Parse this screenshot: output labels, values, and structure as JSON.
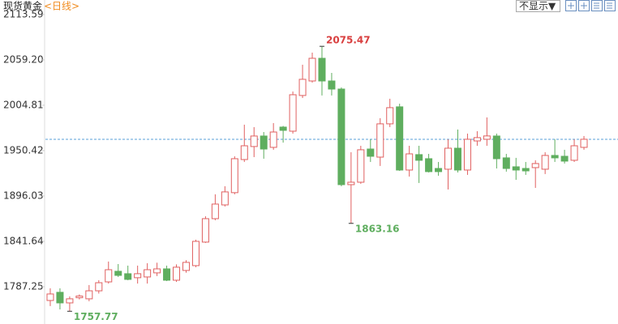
{
  "header": {
    "title": "现货黄金",
    "period": "<日线>",
    "toggle": "不显示▼"
  },
  "chart_data": {
    "type": "candlestick",
    "up_color": "#e06060",
    "down_color": "#5fae5f",
    "last_line_color": "#5aa0d8",
    "ylim": [
      1742.5,
      2131
    ],
    "yticks": [
      1787.25,
      1841.64,
      1896.03,
      1950.42,
      2004.81,
      {
        "value": 2059.2,
        "label": "2059.20"
      },
      2113.59
    ],
    "open": [
      1770.7,
      1780.5,
      1767.8,
      1774,
      1772.7,
      1782.3,
      1793,
      1805.7,
      1802.8,
      1798,
      1798.9,
      1803.8,
      1808.6,
      1795,
      1806.7,
      1812.5,
      1840.7,
      1868.8,
      1885.3,
      1900,
      1939.7,
      1955.3,
      1967.9,
      1954.3,
      1978.6,
      1973.7,
      2016.5,
      2033.9,
      2061.1,
      2033.9,
      2024.2,
      1909.6,
      1912.5,
      1952.3,
      1942.6,
      1982.5,
      2002.9,
      1927.1,
      1945.6,
      1940.7,
      1929,
      1928.1,
      1953.3,
      1927.1,
      1962,
      1964,
      1967.9,
      1941.7,
      1931,
      1929,
      1930,
      1928.1,
      1944.6,
      1943.6,
      1938.8,
      1954.3
    ],
    "high": [
      1785.3,
      1785.3,
      1775.6,
      1778,
      1789.2,
      1795,
      1817.4,
      1814.4,
      1812.5,
      1812.5,
      1815.4,
      1816,
      1812.5,
      1814,
      1819,
      1843.6,
      1871.7,
      1898,
      1907.7,
      1943.6,
      1981.5,
      1978.6,
      1972.7,
      1983.4,
      1980,
      2021.3,
      2053.4,
      2067.9,
      2075.47,
      2043.6,
      2026.2,
      1948.5,
      1956.2,
      1964,
      1989.3,
      2012.6,
      2006.7,
      1956.2,
      1956.2,
      1946.5,
      1936.8,
      1964,
      1975.7,
      1970.8,
      1973.7,
      1990.2,
      1970.8,
      1946.5,
      1941.7,
      1936.8,
      1938.8,
      1948.5,
      1964,
      1951.4,
      1964,
      1967.9
    ],
    "low": [
      1764,
      1760,
      1757.77,
      1772,
      1769.8,
      1779,
      1791,
      1798.9,
      1795,
      1791,
      1791,
      1800,
      1794,
      1793,
      1804,
      1810.6,
      1839.7,
      1866.9,
      1883.4,
      1898,
      1936.8,
      1942.6,
      1940.7,
      1951.4,
      1960,
      1970.8,
      2013.5,
      2032,
      2016.5,
      2016.5,
      1907.7,
      1863.16,
      1910.6,
      1936.8,
      1932,
      1978.6,
      1926.1,
      1919.3,
      1911.6,
      1924.2,
      1920.3,
      1903.8,
      1924.2,
      1921.3,
      1956.2,
      1956.2,
      1929,
      1925.2,
      1915.4,
      1921.3,
      1905.7,
      1922.3,
      1936.8,
      1934.9,
      1936.8,
      1951.4
    ],
    "close": [
      1778.5,
      1767.8,
      1772.7,
      1776,
      1782.3,
      1792,
      1807.6,
      1800.8,
      1796,
      1802.8,
      1807.6,
      1808.6,
      1795,
      1810.6,
      1816.4,
      1841.6,
      1868.8,
      1886.3,
      1900.9,
      1940.7,
      1956.2,
      1967.9,
      1952.3,
      1972.7,
      1974.7,
      2017.4,
      2035.9,
      2061.1,
      2033.9,
      2024.2,
      1909.6,
      1912.5,
      1951.4,
      1943.6,
      1982.5,
      2001.9,
      1927.1,
      1946.5,
      1938.8,
      1925.2,
      1925.2,
      1953.3,
      1927.1,
      1964,
      1966,
      1968,
      1940.7,
      1929,
      1927.1,
      1926.1,
      1934.9,
      1944.6,
      1941.7,
      1937.8,
      1956.2,
      1964
    ]
  }
}
